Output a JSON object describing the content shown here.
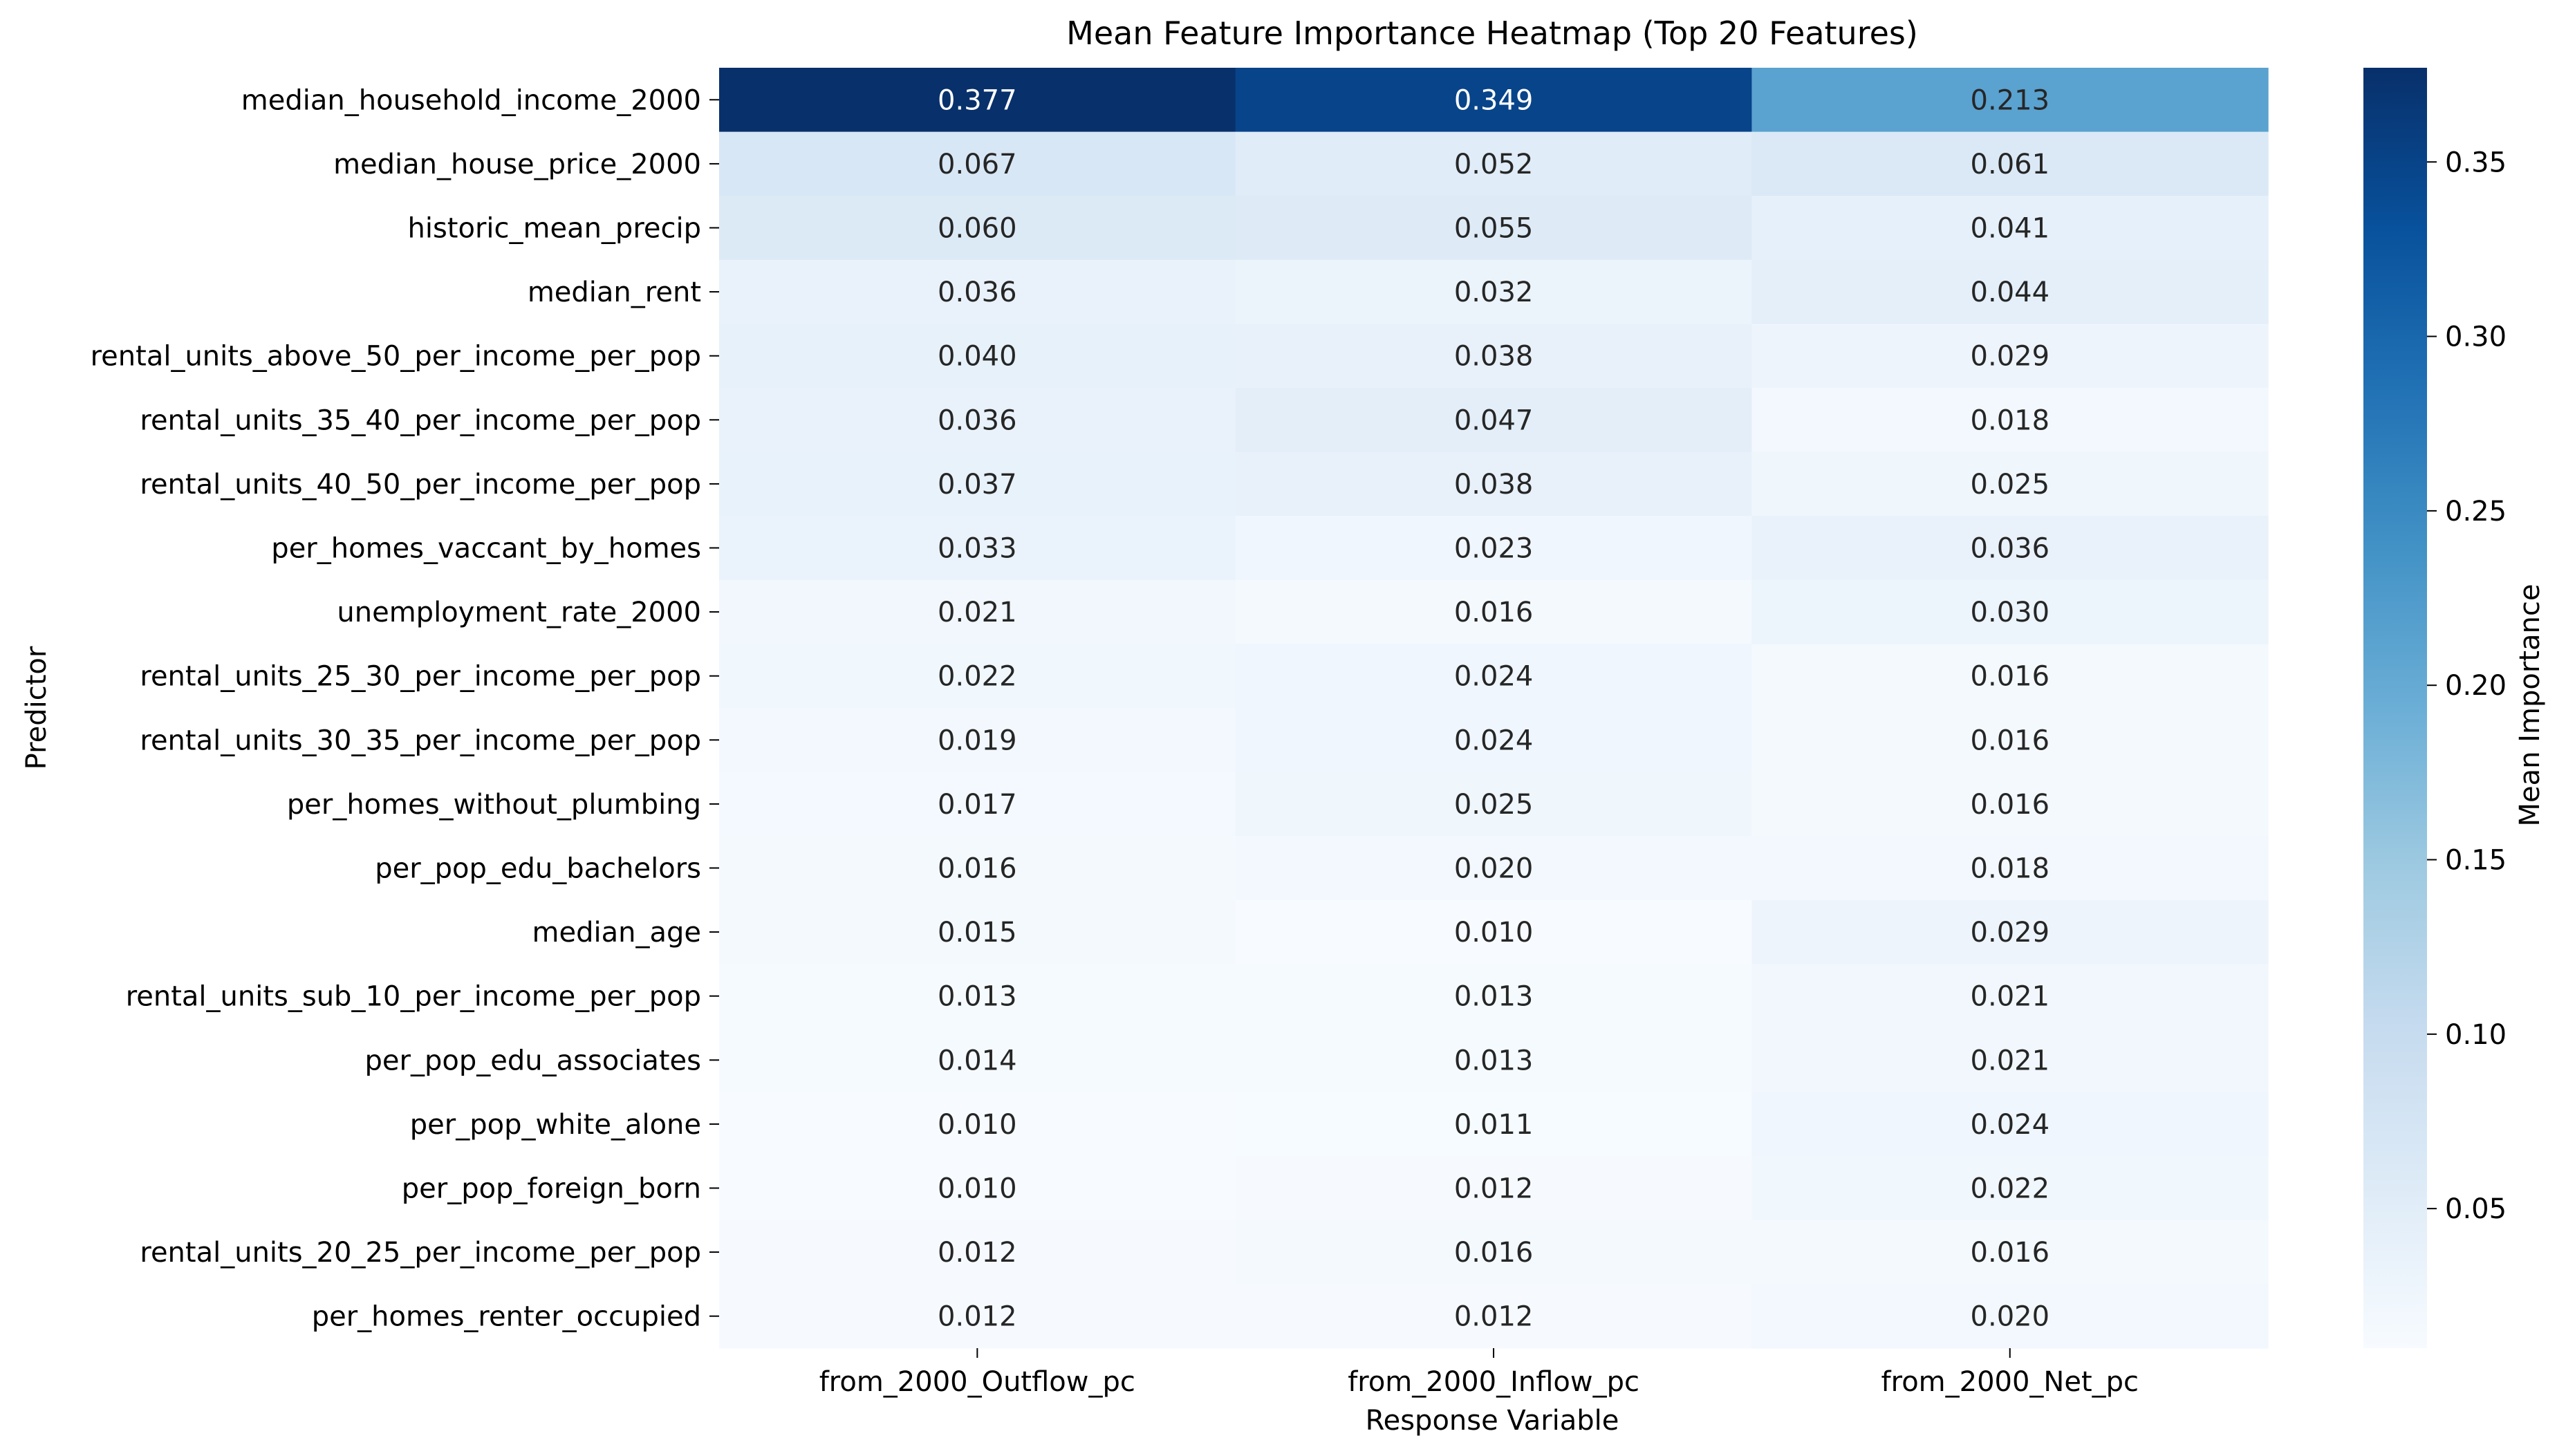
{
  "chart_data": {
    "type": "heatmap",
    "title": "Mean Feature Importance Heatmap (Top 20 Features)",
    "xlabel": "Response Variable",
    "ylabel": "Predictor",
    "columns": [
      "from_2000_Outflow_pc",
      "from_2000_Inflow_pc",
      "from_2000_Net_pc"
    ],
    "rows": [
      "median_household_income_2000",
      "median_house_price_2000",
      "historic_mean_precip",
      "median_rent",
      "rental_units_above_50_per_income_per_pop",
      "rental_units_35_40_per_income_per_pop",
      "rental_units_40_50_per_income_per_pop",
      "per_homes_vaccant_by_homes",
      "unemployment_rate_2000",
      "rental_units_25_30_per_income_per_pop",
      "rental_units_30_35_per_income_per_pop",
      "per_homes_without_plumbing",
      "per_pop_edu_bachelors",
      "median_age",
      "rental_units_sub_10_per_income_per_pop",
      "per_pop_edu_associates",
      "per_pop_white_alone",
      "per_pop_foreign_born",
      "rental_units_20_25_per_income_per_pop",
      "per_homes_renter_occupied"
    ],
    "values": [
      [
        0.377,
        0.349,
        0.213
      ],
      [
        0.067,
        0.052,
        0.061
      ],
      [
        0.06,
        0.055,
        0.041
      ],
      [
        0.036,
        0.032,
        0.044
      ],
      [
        0.04,
        0.038,
        0.029
      ],
      [
        0.036,
        0.047,
        0.018
      ],
      [
        0.037,
        0.038,
        0.025
      ],
      [
        0.033,
        0.023,
        0.036
      ],
      [
        0.021,
        0.016,
        0.03
      ],
      [
        0.022,
        0.024,
        0.016
      ],
      [
        0.019,
        0.024,
        0.016
      ],
      [
        0.017,
        0.025,
        0.016
      ],
      [
        0.016,
        0.02,
        0.018
      ],
      [
        0.015,
        0.01,
        0.029
      ],
      [
        0.013,
        0.013,
        0.021
      ],
      [
        0.014,
        0.013,
        0.021
      ],
      [
        0.01,
        0.011,
        0.024
      ],
      [
        0.01,
        0.012,
        0.022
      ],
      [
        0.012,
        0.016,
        0.016
      ],
      [
        0.012,
        0.012,
        0.02
      ]
    ],
    "colorbar": {
      "label": "Mean Importance",
      "range": [
        0.01,
        0.377
      ],
      "ticks": [
        0.05,
        0.1,
        0.15,
        0.2,
        0.25,
        0.3,
        0.35
      ],
      "tick_labels": [
        "0.05",
        "0.10",
        "0.15",
        "0.20",
        "0.25",
        "0.30",
        "0.35"
      ],
      "colormap": "Blues",
      "palette": [
        "#f7fbff",
        "#deebf7",
        "#c6dbef",
        "#9ecae1",
        "#6baed6",
        "#4292c6",
        "#2171b5",
        "#08519c",
        "#08306b"
      ]
    },
    "grid": false
  }
}
